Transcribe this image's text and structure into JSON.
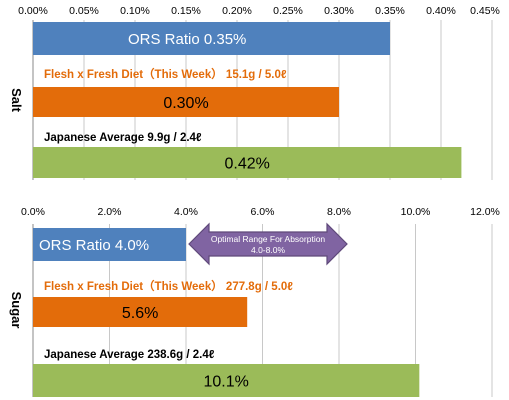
{
  "chart_data": [
    {
      "type": "bar",
      "orientation": "horizontal",
      "ylabel": "Salt",
      "xlim": [
        0,
        0.45
      ],
      "x_ticks": [
        "0.00%",
        "0.05%",
        "0.10%",
        "0.15%",
        "0.20%",
        "0.25%",
        "0.30%",
        "0.35%",
        "0.40%",
        "0.45%"
      ],
      "grid": true,
      "bars": [
        {
          "category": "ORS",
          "value": 0.35,
          "color": "#4F81BD",
          "label": "ORS Ratio   0.35%",
          "label_style": "inside-left"
        },
        {
          "category": "Flesh x Fresh Diet",
          "value": 0.3,
          "color": "#E36C0A",
          "heading": "Flesh x Fresh Diet（This Week） 15.1g / 5.0ℓ",
          "heading_color": "#E36C0A",
          "label": "0.30%",
          "label_style": "center-dark"
        },
        {
          "category": "Japanese Average",
          "value": 0.42,
          "color": "#9BBB59",
          "heading": "Japanese Average   9.9g / 2.4ℓ",
          "heading_color": "#000000",
          "label": "0.42%",
          "label_style": "center-dark"
        }
      ]
    },
    {
      "type": "bar",
      "orientation": "horizontal",
      "ylabel": "Sugar",
      "xlim": [
        0,
        12
      ],
      "x_ticks": [
        "0.0%",
        "2.0%",
        "4.0%",
        "6.0%",
        "8.0%",
        "10.0%",
        "12.0%"
      ],
      "grid": true,
      "bars": [
        {
          "category": "ORS",
          "value": 4.0,
          "color": "#4F81BD",
          "label": "ORS Ratio 4.0%",
          "label_style": "inside-left"
        },
        {
          "category": "Flesh x Fresh Diet",
          "value": 5.6,
          "color": "#E36C0A",
          "heading": "Flesh x Fresh Diet（This Week） 277.8g / 5.0ℓ",
          "heading_color": "#E36C0A",
          "label": "5.6%",
          "label_style": "center-dark"
        },
        {
          "category": "Japanese Average",
          "value": 10.1,
          "color": "#9BBB59",
          "heading": "Japanese Average   238.6g / 2.4ℓ",
          "heading_color": "#000000",
          "label": "10.1%",
          "label_style": "center-dark"
        }
      ],
      "annotation": {
        "text_line1": "Optimal Range For Absorption",
        "text_line2": "4.0-8.0%",
        "range": [
          4.0,
          8.0
        ],
        "color": "#8064A2"
      }
    }
  ]
}
